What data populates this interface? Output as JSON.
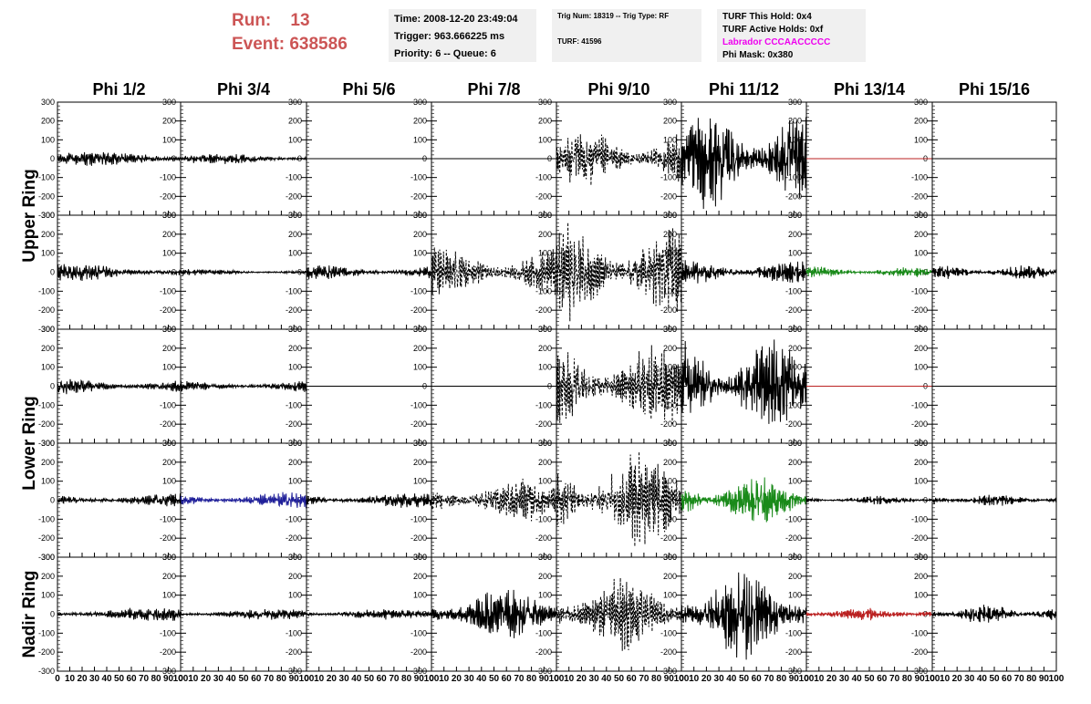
{
  "header": {
    "run_label": "Run:",
    "run_value": "13",
    "event_label": "Event:",
    "event_value": "638586"
  },
  "info_time": {
    "time": "Time: 2008-12-20 23:49:04",
    "trigger": "Trigger: 963.666225 ms",
    "priority": "Priority: 6 -- Queue: 6"
  },
  "info_trig": {
    "trig": "Trig Num: 18319 -- Trig Type: RF",
    "turf": "TURF: 41596"
  },
  "info_turf": {
    "this_hold": "TURF This Hold: 0x4",
    "active_holds": "TURF Active Holds: 0xf",
    "labrador": "Labrador CCCAACCCCC",
    "phi_mask": "Phi Mask: 0x380"
  },
  "colors": {
    "header": "#cc5555",
    "labrador": "#ee00ee",
    "black": "#000000",
    "blue": "#1f1f99",
    "green": "#1a8a1a",
    "red": "#bb2222"
  },
  "chart_data": {
    "type": "line",
    "columns": [
      "Phi 1/2",
      "Phi 3/4",
      "Phi 5/6",
      "Phi 7/8",
      "Phi 9/10",
      "Phi 11/12",
      "Phi 13/14",
      "Phi 15/16"
    ],
    "ring_labels": [
      {
        "label": "Upper Ring",
        "rows": [
          0,
          1
        ]
      },
      {
        "label": "Lower Ring",
        "rows": [
          2,
          3
        ]
      },
      {
        "label": "Nadir Ring",
        "rows": [
          4
        ]
      }
    ],
    "xlim": [
      0,
      100
    ],
    "ylim": [
      -300,
      300
    ],
    "x_ticks": [
      0,
      10,
      20,
      30,
      40,
      50,
      60,
      70,
      80,
      90,
      100
    ],
    "y_ticks": [
      -300,
      -200,
      -100,
      0,
      100,
      200,
      300
    ],
    "cells": [
      [
        {
          "amp": 35,
          "style": "solid",
          "color": "black"
        },
        {
          "amp": 25,
          "style": "solid",
          "color": "black"
        },
        {
          "amp": 0,
          "style": "solid",
          "color": "black"
        },
        {
          "amp": 0,
          "style": "solid",
          "color": "black"
        },
        {
          "amp": 140,
          "style": "dashed",
          "color": "black"
        },
        {
          "amp": 240,
          "style": "solid",
          "color": "black"
        },
        {
          "amp": 0,
          "style": "solid",
          "color": "red"
        },
        {
          "amp": 0,
          "style": "solid",
          "color": "black"
        }
      ],
      [
        {
          "amp": 40,
          "style": "solid",
          "color": "black"
        },
        {
          "amp": 15,
          "style": "solid",
          "color": "black"
        },
        {
          "amp": 35,
          "style": "solid",
          "color": "black"
        },
        {
          "amp": 120,
          "style": "dashed",
          "color": "black"
        },
        {
          "amp": 230,
          "style": "dashed",
          "color": "black"
        },
        {
          "amp": 55,
          "style": "solid",
          "color": "black"
        },
        {
          "amp": 25,
          "style": "solid",
          "color": "green"
        },
        {
          "amp": 35,
          "style": "solid",
          "color": "black"
        }
      ],
      [
        {
          "amp": 45,
          "style": "solid",
          "color": "black"
        },
        {
          "amp": 30,
          "style": "solid",
          "color": "black"
        },
        {
          "amp": 0,
          "style": "solid",
          "color": "black"
        },
        {
          "amp": 0,
          "style": "solid",
          "color": "black"
        },
        {
          "amp": 210,
          "style": "dashed",
          "color": "black"
        },
        {
          "amp": 220,
          "style": "solid",
          "color": "black"
        },
        {
          "amp": 0,
          "style": "solid",
          "color": "red"
        },
        {
          "amp": 0,
          "style": "solid",
          "color": "black"
        }
      ],
      [
        {
          "amp": 35,
          "style": "solid",
          "color": "black"
        },
        {
          "amp": 40,
          "style": "solid",
          "color": "blue"
        },
        {
          "amp": 35,
          "style": "solid",
          "color": "black"
        },
        {
          "amp": 100,
          "style": "dashed",
          "color": "black"
        },
        {
          "amp": 230,
          "style": "dashed",
          "color": "black"
        },
        {
          "amp": 110,
          "style": "solid",
          "color": "green"
        },
        {
          "amp": 20,
          "style": "solid",
          "color": "black"
        },
        {
          "amp": 30,
          "style": "solid",
          "color": "black"
        }
      ],
      [
        {
          "amp": 35,
          "style": "solid",
          "color": "black"
        },
        {
          "amp": 25,
          "style": "solid",
          "color": "black"
        },
        {
          "amp": 25,
          "style": "solid",
          "color": "black"
        },
        {
          "amp": 120,
          "style": "solid",
          "color": "black"
        },
        {
          "amp": 170,
          "style": "dashed",
          "color": "black"
        },
        {
          "amp": 210,
          "style": "solid",
          "color": "black"
        },
        {
          "amp": 30,
          "style": "solid",
          "color": "red"
        },
        {
          "amp": 45,
          "style": "solid",
          "color": "black"
        }
      ]
    ]
  }
}
